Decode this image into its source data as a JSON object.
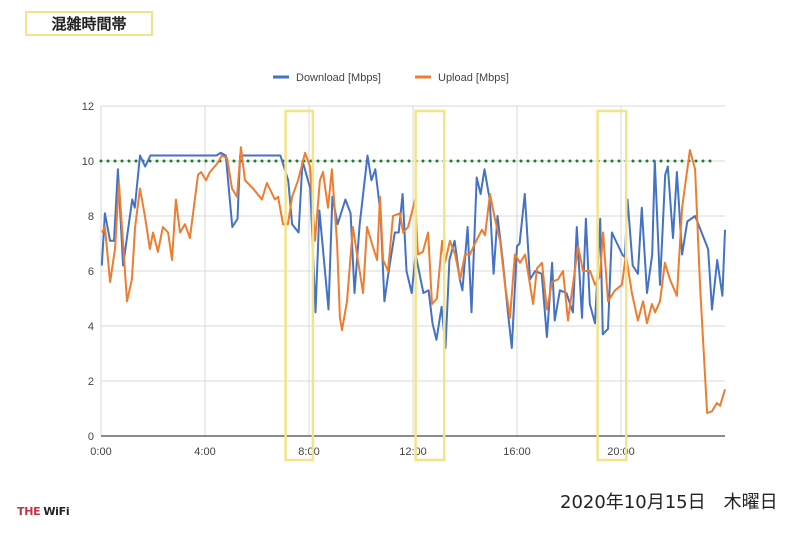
{
  "page": {
    "title": "混雑時間帯",
    "date": "2020年10月15日　木曜日",
    "logo": {
      "part1": "THE",
      "part2": "WiFi"
    }
  },
  "chart_data": {
    "type": "line",
    "title": "",
    "xlabel": "",
    "ylabel": "",
    "xlim": [
      0,
      24
    ],
    "ylim": [
      0,
      12
    ],
    "x_ticks": [
      0,
      4,
      8,
      12,
      16,
      20
    ],
    "x_tick_labels": [
      "0:00",
      "4:00",
      "8:00",
      "12:00",
      "16:00",
      "20:00"
    ],
    "y_ticks": [
      0,
      2,
      4,
      6,
      8,
      10,
      12
    ],
    "y_tick_labels": [
      "0",
      "2",
      "4",
      "6",
      "8",
      "10",
      "12"
    ],
    "grid": true,
    "legend_position": "top-center",
    "reference_line": {
      "value": 10,
      "color": "#1e7a2e",
      "style": "dotted"
    },
    "highlight_ranges_hours": [
      [
        7.1,
        8.15
      ],
      [
        12.1,
        13.2
      ],
      [
        19.1,
        20.2
      ]
    ],
    "highlight_color": "#f3e48a",
    "series": [
      {
        "name": "Download [Mbps]",
        "color": "#4472c4",
        "points": [
          [
            0.03,
            6.2
          ],
          [
            0.15,
            8.1
          ],
          [
            0.35,
            7.1
          ],
          [
            0.5,
            7.1
          ],
          [
            0.65,
            9.7
          ],
          [
            0.85,
            6.2
          ],
          [
            1.2,
            8.6
          ],
          [
            1.3,
            8.3
          ],
          [
            1.5,
            10.2
          ],
          [
            1.7,
            9.8
          ],
          [
            1.9,
            10.2
          ],
          [
            4.45,
            10.2
          ],
          [
            4.6,
            10.3
          ],
          [
            4.8,
            10.2
          ],
          [
            5.05,
            7.6
          ],
          [
            5.25,
            7.9
          ],
          [
            5.35,
            10.2
          ],
          [
            6.9,
            10.2
          ],
          [
            7.2,
            9.3
          ],
          [
            7.35,
            7.7
          ],
          [
            7.6,
            7.4
          ],
          [
            7.75,
            10.0
          ],
          [
            8.05,
            9.0
          ],
          [
            8.25,
            4.5
          ],
          [
            8.4,
            8.2
          ],
          [
            8.75,
            4.6
          ],
          [
            8.9,
            8.7
          ],
          [
            9.1,
            7.7
          ],
          [
            9.4,
            8.6
          ],
          [
            9.6,
            8.1
          ],
          [
            9.75,
            5.2
          ],
          [
            9.95,
            7.7
          ],
          [
            10.25,
            10.2
          ],
          [
            10.4,
            9.3
          ],
          [
            10.55,
            9.7
          ],
          [
            10.75,
            8.1
          ],
          [
            10.9,
            4.9
          ],
          [
            11.05,
            5.9
          ],
          [
            11.3,
            7.4
          ],
          [
            11.45,
            7.4
          ],
          [
            11.6,
            8.8
          ],
          [
            11.75,
            6.0
          ],
          [
            11.95,
            5.2
          ],
          [
            12.1,
            6.6
          ],
          [
            12.4,
            5.2
          ],
          [
            12.6,
            5.3
          ],
          [
            12.75,
            4.1
          ],
          [
            12.9,
            3.5
          ],
          [
            13.1,
            4.7
          ],
          [
            13.25,
            3.2
          ],
          [
            13.4,
            6.4
          ],
          [
            13.6,
            7.1
          ],
          [
            13.8,
            5.7
          ],
          [
            13.9,
            5.3
          ],
          [
            14.1,
            7.6
          ],
          [
            14.25,
            4.5
          ],
          [
            14.45,
            9.4
          ],
          [
            14.6,
            8.8
          ],
          [
            14.75,
            9.7
          ],
          [
            14.95,
            8.6
          ],
          [
            15.1,
            5.9
          ],
          [
            15.25,
            8.0
          ],
          [
            15.45,
            6.4
          ],
          [
            15.65,
            4.5
          ],
          [
            15.8,
            3.2
          ],
          [
            16.0,
            6.9
          ],
          [
            16.1,
            7.0
          ],
          [
            16.3,
            8.8
          ],
          [
            16.5,
            5.7
          ],
          [
            16.7,
            6.0
          ],
          [
            16.95,
            5.9
          ],
          [
            17.15,
            3.6
          ],
          [
            17.35,
            6.3
          ],
          [
            17.45,
            4.2
          ],
          [
            17.65,
            5.3
          ],
          [
            17.9,
            5.2
          ],
          [
            18.15,
            4.5
          ],
          [
            18.3,
            7.6
          ],
          [
            18.5,
            4.3
          ],
          [
            18.65,
            7.9
          ],
          [
            18.8,
            4.8
          ],
          [
            19.0,
            4.1
          ],
          [
            19.2,
            7.9
          ],
          [
            19.3,
            3.7
          ],
          [
            19.5,
            3.9
          ],
          [
            19.65,
            7.4
          ],
          [
            20.05,
            6.6
          ],
          [
            20.15,
            6.5
          ],
          [
            20.25,
            8.6
          ],
          [
            20.45,
            6.2
          ],
          [
            20.65,
            5.9
          ],
          [
            20.8,
            8.3
          ],
          [
            21.0,
            5.2
          ],
          [
            21.2,
            6.6
          ],
          [
            21.3,
            10.0
          ],
          [
            21.5,
            5.5
          ],
          [
            21.7,
            9.5
          ],
          [
            21.8,
            9.8
          ],
          [
            22.0,
            7.2
          ],
          [
            22.15,
            9.6
          ],
          [
            22.35,
            6.6
          ],
          [
            22.55,
            7.8
          ],
          [
            22.85,
            8.0
          ],
          [
            23.35,
            6.8
          ],
          [
            23.5,
            4.6
          ],
          [
            23.7,
            6.4
          ],
          [
            23.9,
            5.1
          ],
          [
            24.0,
            7.5
          ]
        ]
      },
      {
        "name": "Upload [Mbps]",
        "color": "#ed7d31",
        "points": [
          [
            0.04,
            7.4
          ],
          [
            0.15,
            7.6
          ],
          [
            0.35,
            5.6
          ],
          [
            0.54,
            6.8
          ],
          [
            0.69,
            9.2
          ],
          [
            0.85,
            7.0
          ],
          [
            1.0,
            4.9
          ],
          [
            1.19,
            5.7
          ],
          [
            1.31,
            7.6
          ],
          [
            1.5,
            9.0
          ],
          [
            1.69,
            8.0
          ],
          [
            1.88,
            6.8
          ],
          [
            2.0,
            7.4
          ],
          [
            2.19,
            6.7
          ],
          [
            2.38,
            7.6
          ],
          [
            2.58,
            7.4
          ],
          [
            2.73,
            6.4
          ],
          [
            2.88,
            8.6
          ],
          [
            3.04,
            7.4
          ],
          [
            3.23,
            7.7
          ],
          [
            3.42,
            7.2
          ],
          [
            3.73,
            9.5
          ],
          [
            3.85,
            9.6
          ],
          [
            4.04,
            9.3
          ],
          [
            4.19,
            9.6
          ],
          [
            4.46,
            9.9
          ],
          [
            4.65,
            10.2
          ],
          [
            4.85,
            10.1
          ],
          [
            5.04,
            9.0
          ],
          [
            5.23,
            8.7
          ],
          [
            5.38,
            10.5
          ],
          [
            5.54,
            9.3
          ],
          [
            5.85,
            9.0
          ],
          [
            6.19,
            8.6
          ],
          [
            6.38,
            9.2
          ],
          [
            6.69,
            8.6
          ],
          [
            6.81,
            8.7
          ],
          [
            7.0,
            7.7
          ],
          [
            7.19,
            7.7
          ],
          [
            7.35,
            8.7
          ],
          [
            7.58,
            9.3
          ],
          [
            7.85,
            10.3
          ],
          [
            8.04,
            9.8
          ],
          [
            8.23,
            7.1
          ],
          [
            8.42,
            9.3
          ],
          [
            8.54,
            9.6
          ],
          [
            8.73,
            8.3
          ],
          [
            8.88,
            9.7
          ],
          [
            9.08,
            7.0
          ],
          [
            9.19,
            4.3
          ],
          [
            9.27,
            3.85
          ],
          [
            9.46,
            4.9
          ],
          [
            9.69,
            7.6
          ],
          [
            9.88,
            6.4
          ],
          [
            10.08,
            5.2
          ],
          [
            10.23,
            7.6
          ],
          [
            10.42,
            7.0
          ],
          [
            10.62,
            6.4
          ],
          [
            10.73,
            8.7
          ],
          [
            10.85,
            6.4
          ],
          [
            11.04,
            6.0
          ],
          [
            11.23,
            8.0
          ],
          [
            11.5,
            8.1
          ],
          [
            11.62,
            7.4
          ],
          [
            11.81,
            7.6
          ],
          [
            12.08,
            8.6
          ],
          [
            12.19,
            6.6
          ],
          [
            12.38,
            6.7
          ],
          [
            12.58,
            7.4
          ],
          [
            12.73,
            4.8
          ],
          [
            12.92,
            5.0
          ],
          [
            13.12,
            7.1
          ],
          [
            13.23,
            6.3
          ],
          [
            13.42,
            7.1
          ],
          [
            13.62,
            6.6
          ],
          [
            13.81,
            5.7
          ],
          [
            14.0,
            6.6
          ],
          [
            14.19,
            6.6
          ],
          [
            14.38,
            7.0
          ],
          [
            14.65,
            7.5
          ],
          [
            14.77,
            7.3
          ],
          [
            14.96,
            8.8
          ],
          [
            15.15,
            7.9
          ],
          [
            15.35,
            7.1
          ],
          [
            15.54,
            5.5
          ],
          [
            15.73,
            4.3
          ],
          [
            15.92,
            6.6
          ],
          [
            16.12,
            6.3
          ],
          [
            16.31,
            6.6
          ],
          [
            16.5,
            5.5
          ],
          [
            16.62,
            4.8
          ],
          [
            16.77,
            6.1
          ],
          [
            16.96,
            6.3
          ],
          [
            17.15,
            4.6
          ],
          [
            17.35,
            5.6
          ],
          [
            17.58,
            5.7
          ],
          [
            17.77,
            6.0
          ],
          [
            17.96,
            4.2
          ],
          [
            18.15,
            5.5
          ],
          [
            18.35,
            6.9
          ],
          [
            18.54,
            6.0
          ],
          [
            18.81,
            6.0
          ],
          [
            19.0,
            5.5
          ],
          [
            19.19,
            5.8
          ],
          [
            19.31,
            7.4
          ],
          [
            19.5,
            4.9
          ],
          [
            19.77,
            5.3
          ],
          [
            20.04,
            5.5
          ],
          [
            20.19,
            6.6
          ],
          [
            20.42,
            5.2
          ],
          [
            20.65,
            4.2
          ],
          [
            20.85,
            4.9
          ],
          [
            21.0,
            4.1
          ],
          [
            21.19,
            4.8
          ],
          [
            21.31,
            4.5
          ],
          [
            21.5,
            4.9
          ],
          [
            21.69,
            6.3
          ],
          [
            21.88,
            5.7
          ],
          [
            22.15,
            5.1
          ],
          [
            22.35,
            8.3
          ],
          [
            22.65,
            10.4
          ],
          [
            22.85,
            9.7
          ],
          [
            23.04,
            5.5
          ],
          [
            23.31,
            0.84
          ],
          [
            23.5,
            0.9
          ],
          [
            23.69,
            1.2
          ],
          [
            23.81,
            1.1
          ],
          [
            24.0,
            1.7
          ]
        ]
      }
    ]
  }
}
